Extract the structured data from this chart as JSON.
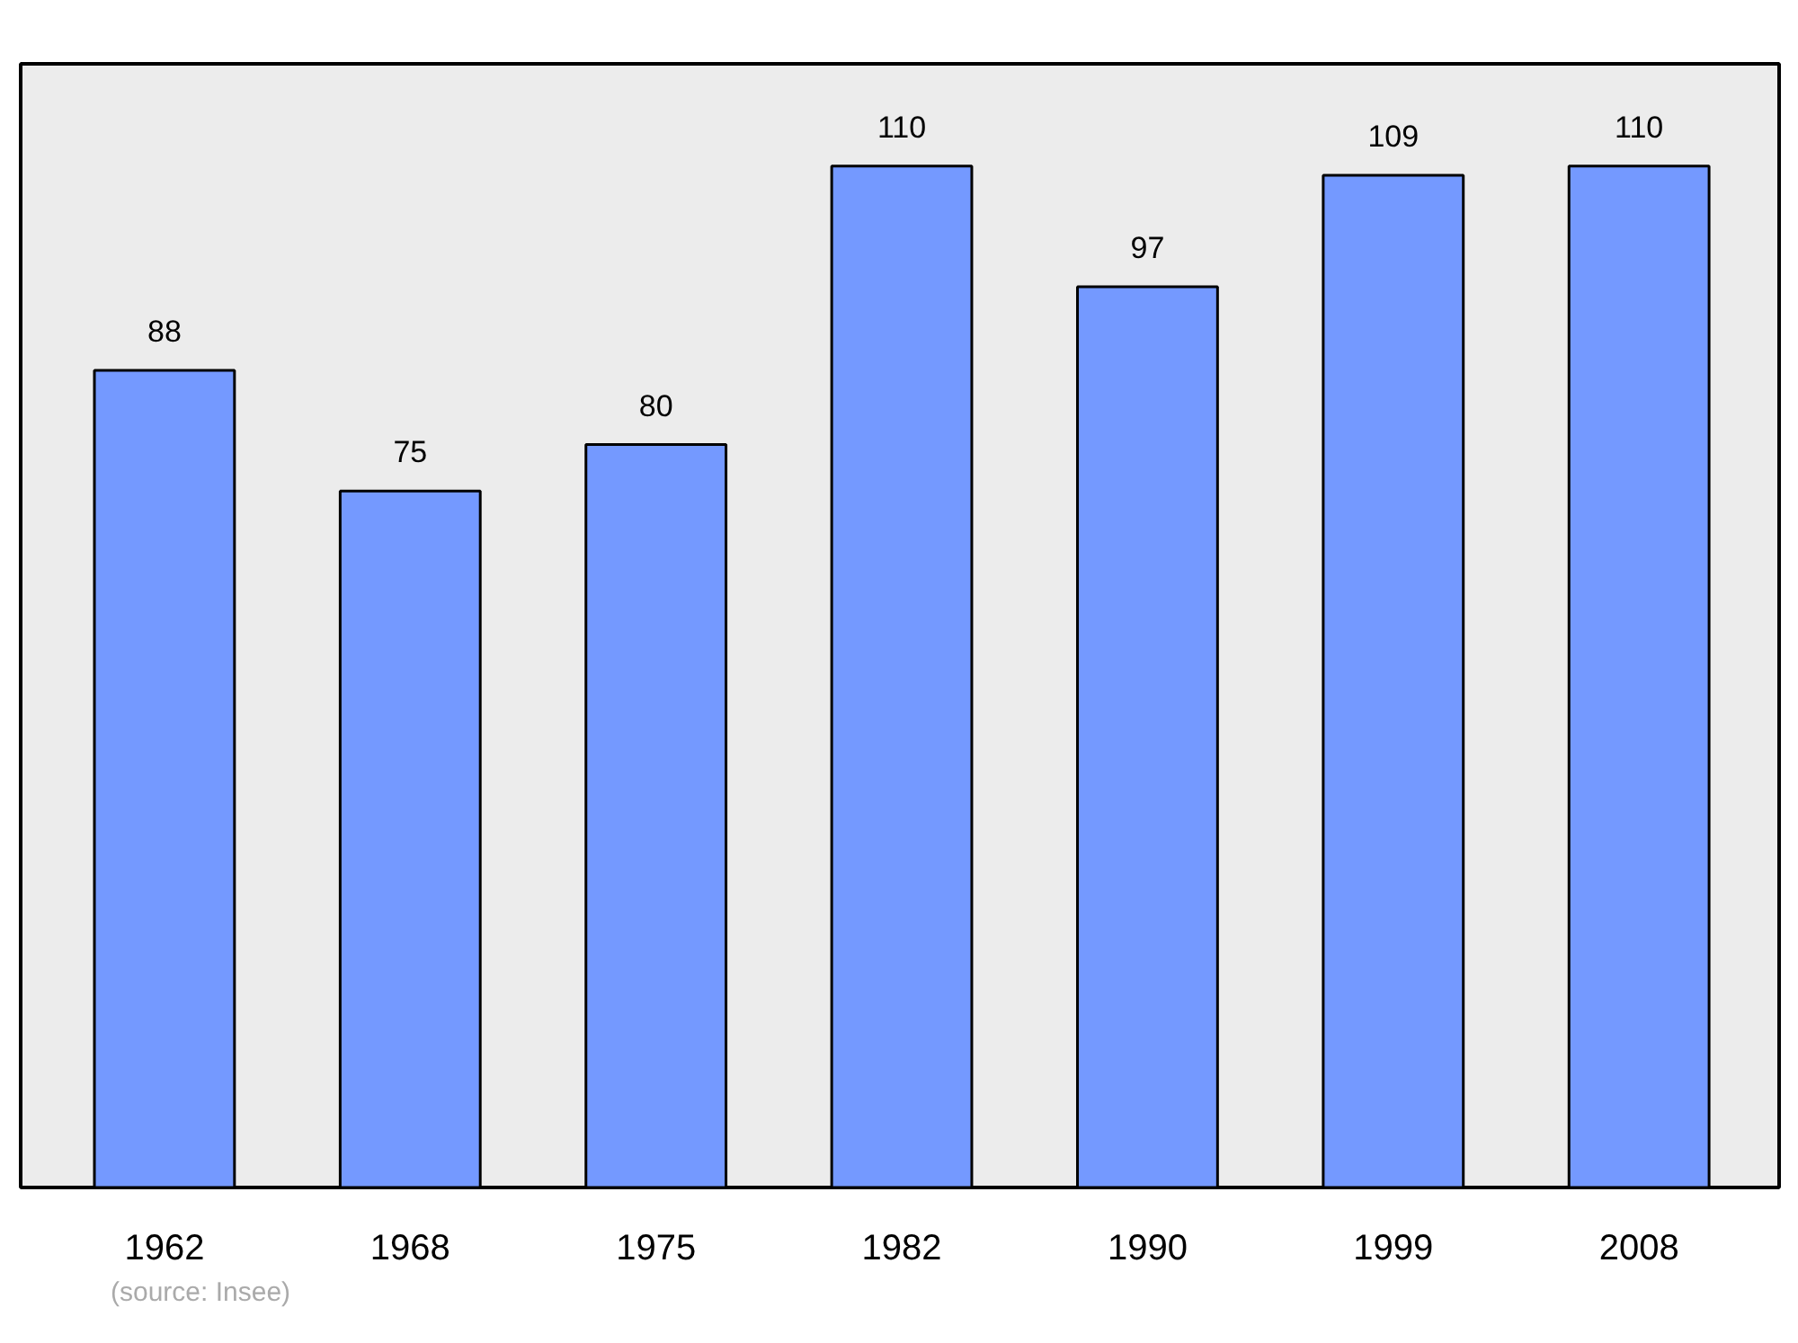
{
  "chart_data": {
    "type": "bar",
    "categories": [
      "1962",
      "1968",
      "1975",
      "1982",
      "1990",
      "1999",
      "2008"
    ],
    "values": [
      88,
      75,
      80,
      110,
      97,
      109,
      110
    ],
    "color": "#7499ff",
    "data_labels": true,
    "ylim": [
      0,
      121
    ],
    "tick_labels": "x",
    "grid": false,
    "annotations": [
      "(source: Insee)"
    ]
  }
}
